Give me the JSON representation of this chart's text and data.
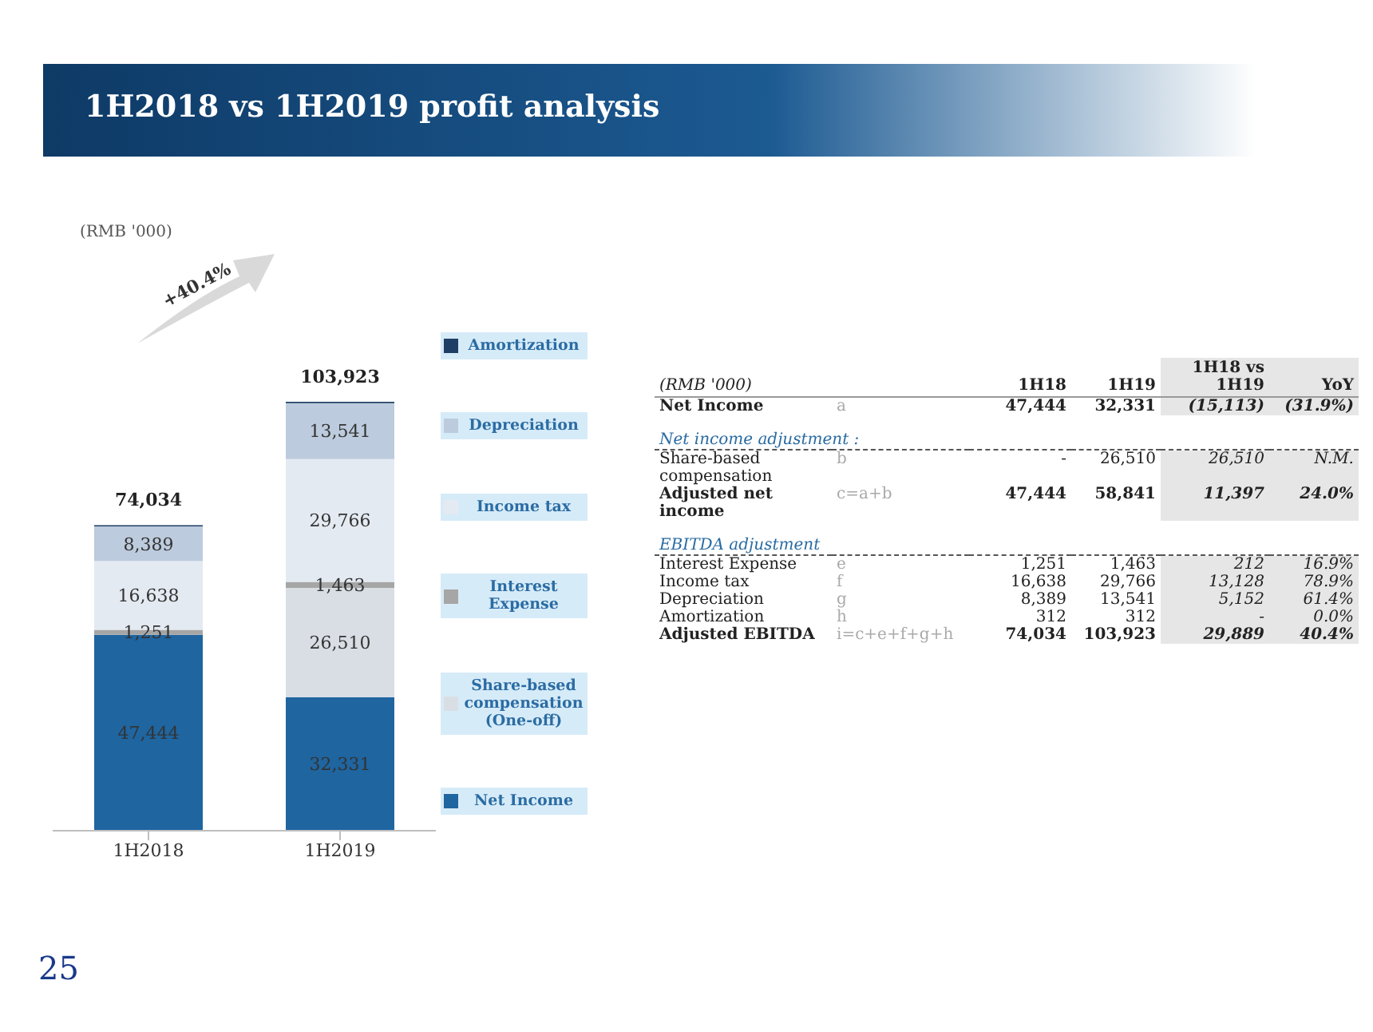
{
  "chart_data": [
    {
      "type": "bar",
      "stacked": true,
      "title": "1H2018 vs 1H2019 profit analysis",
      "categories": [
        "1H2018",
        "1H2019"
      ],
      "legend": "right",
      "series": [
        {
          "name": "Net Income",
          "color": "#1f65a0",
          "values": [
            47444,
            32331
          ],
          "value_labels": [
            "47,444",
            "32,331"
          ]
        },
        {
          "name": "Share-based compensation (One-off)",
          "color": "#d9dee5",
          "values": [
            null,
            26510
          ],
          "value_labels": [
            null,
            "26,510"
          ]
        },
        {
          "name": "Interest Expense",
          "color": "#a6a6a6",
          "values": [
            1251,
            1463
          ],
          "value_labels": [
            "1,251",
            "1,463"
          ]
        },
        {
          "name": "Income tax",
          "color": "#e4eaf2",
          "values": [
            16638,
            29766
          ],
          "value_labels": [
            "16,638",
            "29,766"
          ]
        },
        {
          "name": "Depreciation",
          "color": "#bccbdd",
          "values": [
            8389,
            13541
          ],
          "value_labels": [
            "8,389",
            "13,541"
          ]
        },
        {
          "name": "Amortization",
          "color": "#1f3f66",
          "values": [
            312,
            312
          ],
          "value_labels": [
            null,
            null
          ]
        }
      ],
      "totals": [
        "74,034",
        "103,923"
      ],
      "annotations": [
        "(RMB '000)",
        "+40.4%",
        "25"
      ]
    },
    {
      "type": "other",
      "categories": [
        "(RMB '000)",
        null,
        "1H18",
        "1H19",
        "1H18 vs 1H19",
        "YoY"
      ],
      "y_categories": [
        "Net Income",
        "Net income adjustment :",
        "Share-based compensation",
        "Adjusted net income",
        "EBITDA adjustment",
        "Interest Expense",
        "Income tax",
        "Depreciation",
        "Amortization",
        "Adjusted EBITDA"
      ],
      "cell_labels": [
        [
          "a",
          "47,444",
          "32,331",
          "(15,113)",
          "(31.9%)"
        ],
        [
          null,
          null,
          null,
          null,
          null
        ],
        [
          "b",
          "-",
          "26,510",
          "26,510",
          "N.M."
        ],
        [
          "c=a+b",
          "47,444",
          "58,841",
          "11,397",
          "24.0%"
        ],
        [
          null,
          null,
          null,
          null,
          null
        ],
        [
          "e",
          "1,251",
          "1,463",
          "212",
          "16.9%"
        ],
        [
          "f",
          "16,638",
          "29,766",
          "13,128",
          "78.9%"
        ],
        [
          "g",
          "8,389",
          "13,541",
          "5,152",
          "61.4%"
        ],
        [
          "h",
          "312",
          "312",
          "-",
          "0.0%"
        ],
        [
          "i=c+e+f+g+h",
          "74,034",
          "103,923",
          "29,889",
          "40.4%"
        ]
      ]
    }
  ]
}
